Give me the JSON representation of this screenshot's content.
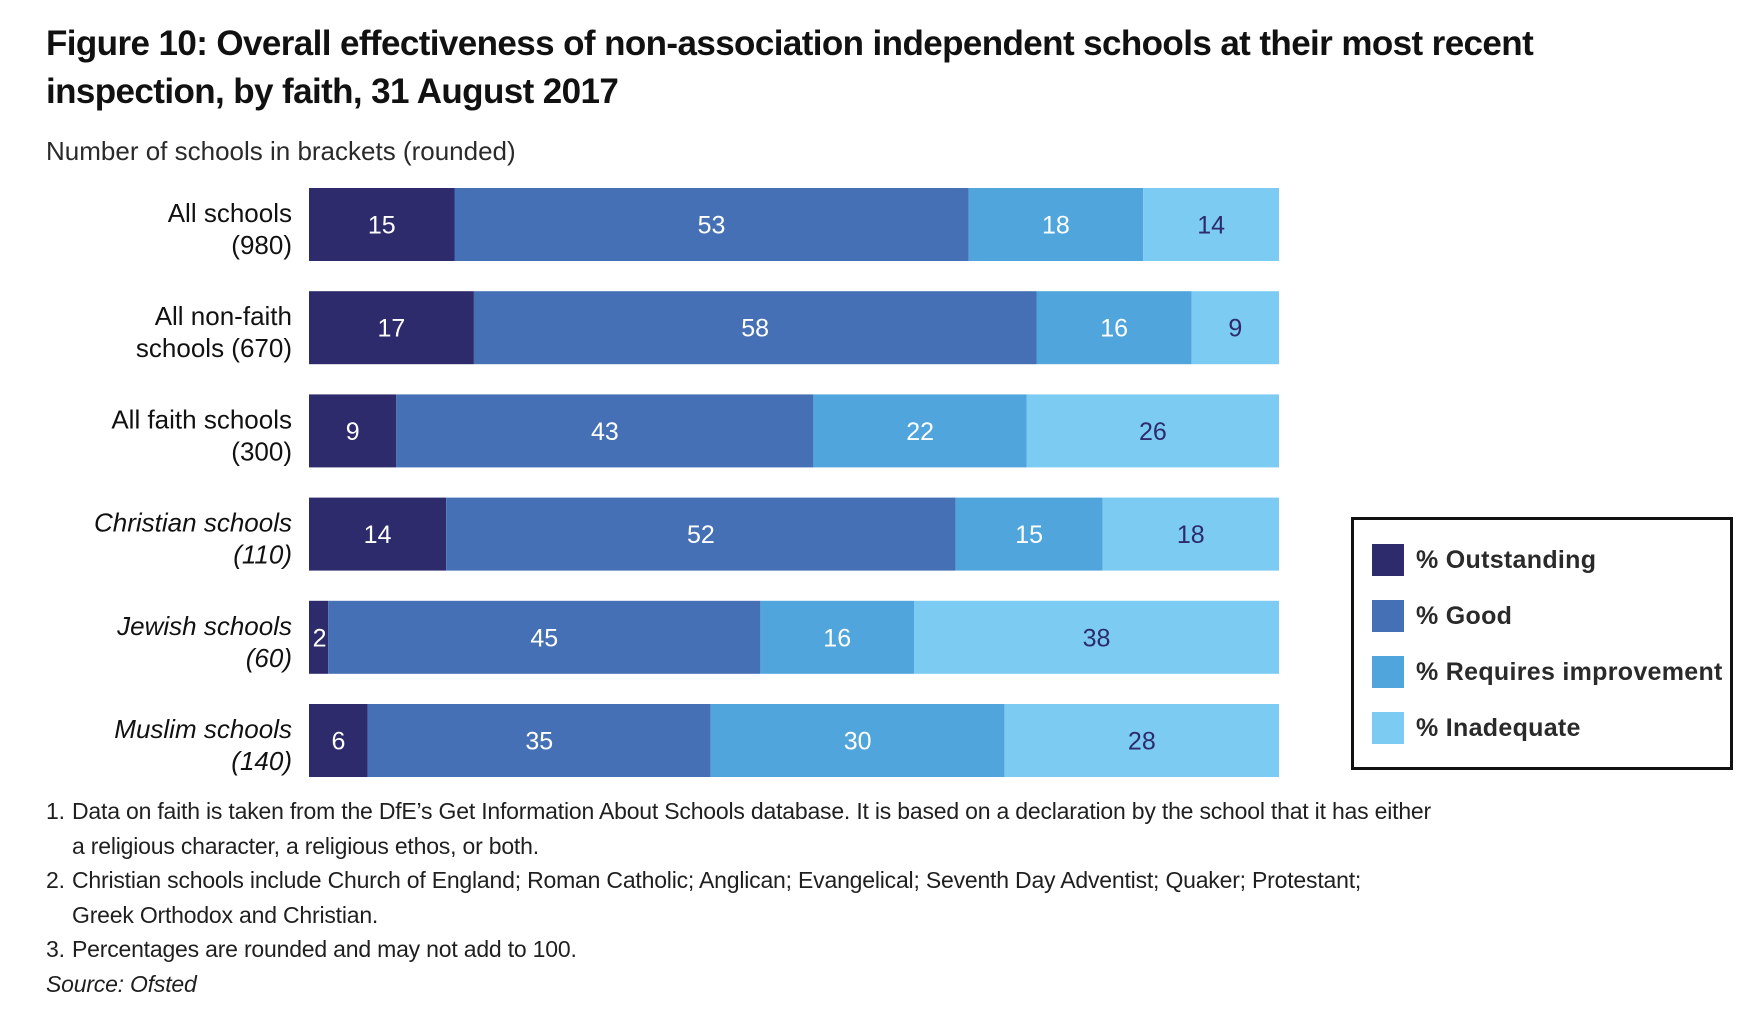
{
  "chart_data": {
    "type": "bar",
    "orientation": "horizontal",
    "stacked": true,
    "title": "Figure 10:  Overall effectiveness of non-association independent schools at their most recent inspection, by faith, 31 August 2017",
    "subtitle": "Number of schools in brackets (rounded)",
    "xlabel": "",
    "ylabel": "",
    "categories": [
      {
        "line1": "All schools",
        "line2": "(980)",
        "italic": false
      },
      {
        "line1": "All non-faith",
        "line2": "schools (670)",
        "italic": false
      },
      {
        "line1": "All faith schools",
        "line2": "(300)",
        "italic": false
      },
      {
        "line1": "Christian schools",
        "line2": "(110)",
        "italic": true
      },
      {
        "line1": "Jewish schools",
        "line2": "(60)",
        "italic": true
      },
      {
        "line1": "Muslim schools",
        "line2": "(140)",
        "italic": true
      }
    ],
    "series": [
      {
        "name": "% Outstanding",
        "color": "#2d2b6b",
        "label_color": "#ffffff",
        "values": [
          15,
          17,
          9,
          14,
          2,
          6
        ]
      },
      {
        "name": "% Good",
        "color": "#4570b5",
        "label_color": "#ffffff",
        "values": [
          53,
          58,
          43,
          52,
          45,
          35
        ]
      },
      {
        "name": "% Requires improvement",
        "color": "#4fa5dc",
        "label_color": "#ffffff",
        "values": [
          18,
          16,
          22,
          15,
          16,
          30
        ]
      },
      {
        "name": "% Inadequate",
        "color": "#7bcbf3",
        "label_color": "#2d2b6b",
        "values": [
          14,
          9,
          26,
          18,
          38,
          28
        ]
      }
    ],
    "data_labels": true,
    "grid": false,
    "axis_visible": false,
    "legend_position": "right",
    "notes": [
      {
        "num": "1.",
        "text": "Data on faith is taken from the DfE’s Get Information About Schools database. It is based on a declaration by the school that it has either\na religious character, a religious ethos, or both."
      },
      {
        "num": "2.",
        "text": "Christian schools include Church of England; Roman Catholic; Anglican; Evangelical; Seventh Day Adventist; Quaker; Protestant;\nGreek Orthodox and Christian."
      },
      {
        "num": "3.",
        "text": "Percentages are rounded and may not add to 100."
      }
    ],
    "source": "Source: Ofsted"
  }
}
